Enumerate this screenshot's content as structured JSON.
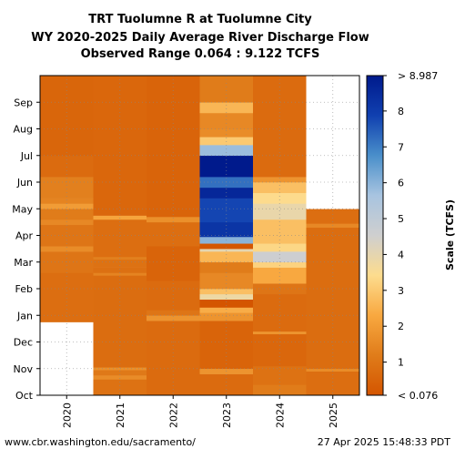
{
  "chart_data": {
    "type": "heatmap",
    "title_lines": [
      "TRT Tuolumne R at Tuolumne City",
      "WY 2020-2025 Daily Average River Discharge Flow",
      "Observed Range 0.064 : 9.122 TCFS"
    ],
    "columns": [
      "2020",
      "2021",
      "2022",
      "2023",
      "2024",
      "2025"
    ],
    "months": [
      "Oct",
      "Nov",
      "Dec",
      "Jan",
      "Feb",
      "Mar",
      "Apr",
      "May",
      "Jun",
      "Jul",
      "Aug",
      "Sep"
    ],
    "colorbar": {
      "label": "Scale (TCFS)",
      "min": 0.076,
      "max": 8.987,
      "top_label": "> 8.987",
      "bottom_label": "< 0.076",
      "ticks": [
        "1",
        "2",
        "3",
        "4",
        "5",
        "6",
        "7",
        "8"
      ],
      "colors": [
        "#d45500",
        "#e07c1a",
        "#f8a840",
        "#fddc8e",
        "#cfcfcf",
        "#a8c4e0",
        "#4a8fca",
        "#1040b0",
        "#001a8c"
      ]
    },
    "grid": true,
    "series": [
      {
        "water_year": "2020",
        "segments": [
          {
            "from_month": 0.0,
            "to_month": 2.75,
            "flow": null
          },
          {
            "from_month": 2.75,
            "to_month": 4.6,
            "flow": 0.8
          },
          {
            "from_month": 4.6,
            "to_month": 5.4,
            "flow": 1.0
          },
          {
            "from_month": 5.4,
            "to_month": 5.6,
            "flow": 1.6
          },
          {
            "from_month": 5.6,
            "to_month": 6.4,
            "flow": 1.0
          },
          {
            "from_month": 6.4,
            "to_month": 6.6,
            "flow": 1.5
          },
          {
            "from_month": 6.6,
            "to_month": 7.0,
            "flow": 1.2
          },
          {
            "from_month": 7.0,
            "to_month": 7.2,
            "flow": 2.0
          },
          {
            "from_month": 7.2,
            "to_month": 7.4,
            "flow": 1.4
          },
          {
            "from_month": 7.4,
            "to_month": 8.2,
            "flow": 1.3
          },
          {
            "from_month": 8.2,
            "to_month": 9.0,
            "flow": 0.7
          },
          {
            "from_month": 9.0,
            "to_month": 12.0,
            "flow": 0.55
          }
        ]
      },
      {
        "water_year": "2021",
        "segments": [
          {
            "from_month": 0.0,
            "to_month": 0.6,
            "flow": 0.9
          },
          {
            "from_month": 0.6,
            "to_month": 0.75,
            "flow": 1.6
          },
          {
            "from_month": 0.75,
            "to_month": 0.95,
            "flow": 1.1
          },
          {
            "from_month": 0.95,
            "to_month": 1.05,
            "flow": 1.7
          },
          {
            "from_month": 1.05,
            "to_month": 4.5,
            "flow": 0.75
          },
          {
            "from_month": 4.5,
            "to_month": 4.6,
            "flow": 1.4
          },
          {
            "from_month": 4.6,
            "to_month": 4.8,
            "flow": 0.85
          },
          {
            "from_month": 4.8,
            "to_month": 5.1,
            "flow": 0.9
          },
          {
            "from_month": 5.1,
            "to_month": 5.2,
            "flow": 1.3
          },
          {
            "from_month": 5.2,
            "to_month": 6.6,
            "flow": 0.8
          },
          {
            "from_month": 6.6,
            "to_month": 6.75,
            "flow": 2.2
          },
          {
            "from_month": 6.75,
            "to_month": 12.0,
            "flow": 0.6
          }
        ]
      },
      {
        "water_year": "2022",
        "segments": [
          {
            "from_month": 0.0,
            "to_month": 2.8,
            "flow": 0.7
          },
          {
            "from_month": 2.8,
            "to_month": 3.0,
            "flow": 1.8
          },
          {
            "from_month": 3.0,
            "to_month": 3.2,
            "flow": 1.0
          },
          {
            "from_month": 3.2,
            "to_month": 4.3,
            "flow": 0.7
          },
          {
            "from_month": 4.3,
            "to_month": 5.6,
            "flow": 0.5
          },
          {
            "from_month": 5.6,
            "to_month": 6.5,
            "flow": 0.8
          },
          {
            "from_month": 6.5,
            "to_month": 6.7,
            "flow": 1.7
          },
          {
            "from_month": 6.7,
            "to_month": 12.0,
            "flow": 0.5
          }
        ]
      },
      {
        "water_year": "2023",
        "segments": [
          {
            "from_month": 0.0,
            "to_month": 0.8,
            "flow": 0.7
          },
          {
            "from_month": 0.8,
            "to_month": 1.0,
            "flow": 1.8
          },
          {
            "from_month": 1.0,
            "to_month": 2.8,
            "flow": 0.5
          },
          {
            "from_month": 2.8,
            "to_month": 3.1,
            "flow": 1.8
          },
          {
            "from_month": 3.1,
            "to_month": 3.3,
            "flow": 2.4
          },
          {
            "from_month": 3.3,
            "to_month": 3.6,
            "flow": 0.08
          },
          {
            "from_month": 3.6,
            "to_month": 3.8,
            "flow": 3.8
          },
          {
            "from_month": 3.8,
            "to_month": 4.0,
            "flow": 2.8
          },
          {
            "from_month": 4.0,
            "to_month": 4.6,
            "flow": 1.5
          },
          {
            "from_month": 4.6,
            "to_month": 5.0,
            "flow": 1.2
          },
          {
            "from_month": 5.0,
            "to_month": 5.4,
            "flow": 2.6
          },
          {
            "from_month": 5.4,
            "to_month": 5.5,
            "flow": 4.0
          },
          {
            "from_month": 5.5,
            "to_month": 5.7,
            "flow": 0.1
          },
          {
            "from_month": 5.7,
            "to_month": 5.95,
            "flow": 6.0
          },
          {
            "from_month": 5.95,
            "to_month": 6.5,
            "flow": 8.2
          },
          {
            "from_month": 6.5,
            "to_month": 7.4,
            "flow": 7.8
          },
          {
            "from_month": 7.4,
            "to_month": 7.8,
            "flow": 8.6
          },
          {
            "from_month": 7.8,
            "to_month": 8.2,
            "flow": 7.2
          },
          {
            "from_month": 8.2,
            "to_month": 9.0,
            "flow": 9.0
          },
          {
            "from_month": 9.0,
            "to_month": 9.4,
            "flow": 5.8
          },
          {
            "from_month": 9.4,
            "to_month": 9.7,
            "flow": 3.0
          },
          {
            "from_month": 9.7,
            "to_month": 10.0,
            "flow": 1.6
          },
          {
            "from_month": 10.0,
            "to_month": 10.6,
            "flow": 1.5
          },
          {
            "from_month": 10.6,
            "to_month": 11.0,
            "flow": 2.6
          },
          {
            "from_month": 11.0,
            "to_month": 12.0,
            "flow": 1.2
          }
        ]
      },
      {
        "water_year": "2024",
        "segments": [
          {
            "from_month": 0.0,
            "to_month": 0.4,
            "flow": 1.2
          },
          {
            "from_month": 0.4,
            "to_month": 1.1,
            "flow": 0.9
          },
          {
            "from_month": 1.1,
            "to_month": 2.3,
            "flow": 0.6
          },
          {
            "from_month": 2.3,
            "to_month": 2.4,
            "flow": 1.8
          },
          {
            "from_month": 2.4,
            "to_month": 3.8,
            "flow": 0.7
          },
          {
            "from_month": 3.8,
            "to_month": 4.2,
            "flow": 1.0
          },
          {
            "from_month": 4.2,
            "to_month": 4.8,
            "flow": 2.3
          },
          {
            "from_month": 4.8,
            "to_month": 5.0,
            "flow": 3.2
          },
          {
            "from_month": 5.0,
            "to_month": 5.4,
            "flow": 4.6
          },
          {
            "from_month": 5.4,
            "to_month": 5.7,
            "flow": 3.3
          },
          {
            "from_month": 5.7,
            "to_month": 6.6,
            "flow": 2.8
          },
          {
            "from_month": 6.6,
            "to_month": 7.2,
            "flow": 3.9
          },
          {
            "from_month": 7.2,
            "to_month": 7.6,
            "flow": 3.4
          },
          {
            "from_month": 7.6,
            "to_month": 8.0,
            "flow": 2.8
          },
          {
            "from_month": 8.0,
            "to_month": 8.2,
            "flow": 1.8
          },
          {
            "from_month": 8.2,
            "to_month": 12.0,
            "flow": 0.7
          }
        ]
      },
      {
        "water_year": "2025",
        "segments": [
          {
            "from_month": 0.0,
            "to_month": 0.9,
            "flow": 0.8
          },
          {
            "from_month": 0.9,
            "to_month": 1.0,
            "flow": 1.6
          },
          {
            "from_month": 1.0,
            "to_month": 6.3,
            "flow": 0.75
          },
          {
            "from_month": 6.3,
            "to_month": 6.45,
            "flow": 1.5
          },
          {
            "from_month": 6.45,
            "to_month": 7.0,
            "flow": 0.8
          },
          {
            "from_month": 7.0,
            "to_month": 12.0,
            "flow": null
          }
        ]
      }
    ]
  },
  "footer": {
    "source": "www.cbr.washington.edu/sacramento/",
    "timestamp": "27 Apr 2025 15:48:33 PDT"
  }
}
